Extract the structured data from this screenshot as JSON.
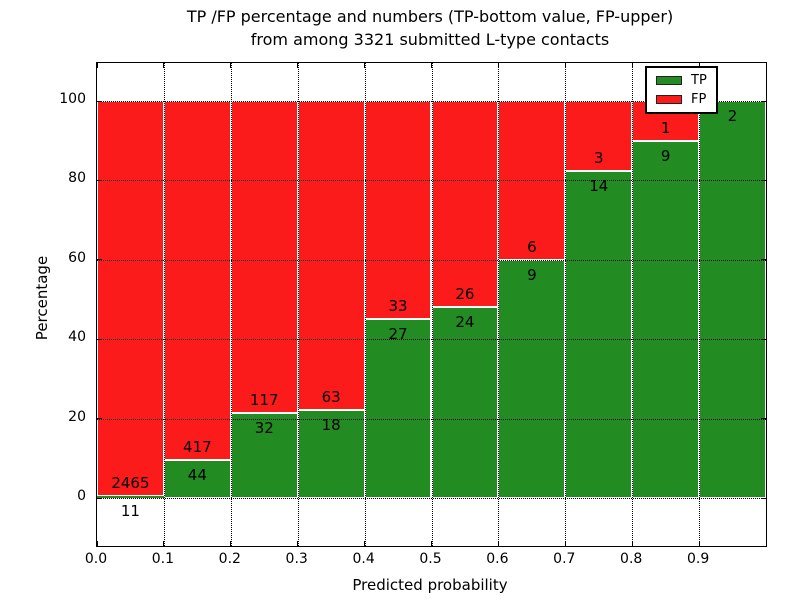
{
  "title": {
    "line1": "TP /FP percentage and numbers (TP-bottom value, FP-upper)",
    "line2": "from among 3321 submitted L-type contacts"
  },
  "axes": {
    "xlabel": "Predicted probability",
    "ylabel": "Percentage",
    "x_ticks": [
      "0.0",
      "0.1",
      "0.2",
      "0.3",
      "0.4",
      "0.5",
      "0.6",
      "0.7",
      "0.8",
      "0.9"
    ],
    "y_ticks": [
      "0",
      "20",
      "40",
      "60",
      "80",
      "100"
    ]
  },
  "legend": {
    "items": [
      {
        "name": "tp",
        "label": "TP",
        "color": "#228b22"
      },
      {
        "name": "fp",
        "label": "FP",
        "color": "#fb1b1b"
      }
    ]
  },
  "colors": {
    "tp_green": "#228b22",
    "fp_red": "#fb1b1b",
    "bar_edge": "#ffffff",
    "grid": "#000000",
    "background": "#ffffff"
  },
  "chart_data": {
    "type": "bar",
    "stacked": true,
    "normalized_to_percent": true,
    "title": "TP /FP percentage and numbers (TP-bottom value, FP-upper) from among 3321 submitted L-type contacts",
    "xlabel": "Predicted probability",
    "ylabel": "Percentage",
    "total_contacts": 3321,
    "bin_width": 0.1,
    "categories": [
      "0.0-0.1",
      "0.1-0.2",
      "0.2-0.3",
      "0.3-0.4",
      "0.4-0.5",
      "0.5-0.6",
      "0.6-0.7",
      "0.7-0.8",
      "0.8-0.9",
      "0.9-1.0"
    ],
    "x_bin_starts": [
      0.0,
      0.1,
      0.2,
      0.3,
      0.4,
      0.5,
      0.6,
      0.7,
      0.8,
      0.9
    ],
    "series": [
      {
        "name": "TP",
        "color": "#228b22",
        "values": [
          11,
          44,
          32,
          18,
          27,
          24,
          9,
          14,
          9,
          2
        ]
      },
      {
        "name": "FP",
        "color": "#fb1b1b",
        "values": [
          2465,
          417,
          117,
          63,
          33,
          26,
          6,
          3,
          1,
          0
        ]
      }
    ],
    "tp_percent": [
      0.44,
      9.54,
      21.48,
      22.22,
      45.0,
      48.0,
      60.0,
      82.35,
      90.0,
      100.0
    ],
    "xlim": [
      0.0,
      1.0
    ],
    "ylim": [
      -12,
      110
    ],
    "grid": true,
    "legend_position": "upper right"
  }
}
